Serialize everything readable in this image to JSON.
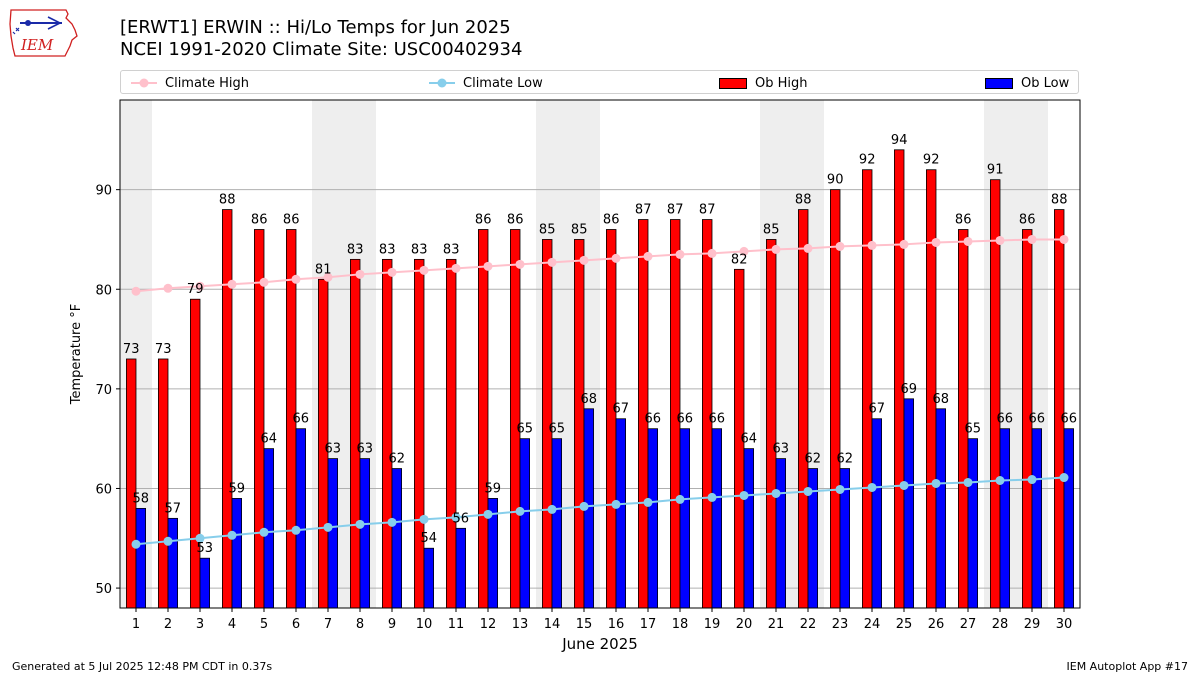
{
  "header": {
    "title_line1": "[ERWT1] ERWIN :: Hi/Lo Temps for Jun 2025",
    "title_line2": "NCEI 1991-2020 Climate Site: USC00402934",
    "logo_text": "IEM"
  },
  "colors": {
    "ob_high": "#ff0000",
    "ob_low": "#0000ff",
    "climate_high": "#ffc0cb",
    "climate_low": "#87ceeb",
    "weekend_shade": "#eeeeee"
  },
  "legend": {
    "climate_high": "Climate High",
    "climate_low": "Climate Low",
    "ob_high": "Ob High",
    "ob_low": "Ob Low"
  },
  "chart_data": {
    "type": "bar",
    "title": "[ERWT1] ERWIN :: Hi/Lo Temps for Jun 2025",
    "xlabel": "June 2025",
    "ylabel": "Temperature °F",
    "ylim": [
      48,
      99
    ],
    "yticks": [
      50,
      60,
      70,
      80,
      90
    ],
    "grid": "horizontal",
    "legend_position": "top",
    "categories": [
      "1",
      "2",
      "3",
      "4",
      "5",
      "6",
      "7",
      "8",
      "9",
      "10",
      "11",
      "12",
      "13",
      "14",
      "15",
      "16",
      "17",
      "18",
      "19",
      "20",
      "21",
      "22",
      "23",
      "24",
      "25",
      "26",
      "27",
      "28",
      "29",
      "30"
    ],
    "shaded_days": [
      1,
      7,
      8,
      14,
      15,
      21,
      22,
      28,
      29
    ],
    "series": [
      {
        "name": "Ob High",
        "kind": "bar",
        "values": [
          73,
          73,
          79,
          88,
          86,
          86,
          81,
          83,
          83,
          83,
          83,
          86,
          86,
          85,
          85,
          86,
          87,
          87,
          87,
          82,
          85,
          88,
          90,
          92,
          94,
          92,
          86,
          91,
          86,
          88
        ]
      },
      {
        "name": "Ob Low",
        "kind": "bar",
        "values": [
          58,
          57,
          53,
          59,
          64,
          66,
          63,
          63,
          62,
          54,
          56,
          59,
          65,
          65,
          68,
          67,
          66,
          66,
          66,
          64,
          63,
          62,
          62,
          67,
          69,
          68,
          65,
          66,
          66,
          66
        ]
      },
      {
        "name": "Climate High",
        "kind": "line",
        "values": [
          79.8,
          80.1,
          80.3,
          80.5,
          80.7,
          81.0,
          81.2,
          81.5,
          81.7,
          81.9,
          82.1,
          82.3,
          82.5,
          82.7,
          82.9,
          83.1,
          83.3,
          83.5,
          83.6,
          83.8,
          84.0,
          84.1,
          84.3,
          84.4,
          84.5,
          84.7,
          84.8,
          84.9,
          85.0,
          85.0
        ]
      },
      {
        "name": "Climate Low",
        "kind": "line",
        "values": [
          54.4,
          54.7,
          55.0,
          55.3,
          55.6,
          55.8,
          56.1,
          56.4,
          56.6,
          56.9,
          57.1,
          57.4,
          57.7,
          57.9,
          58.2,
          58.4,
          58.6,
          58.9,
          59.1,
          59.3,
          59.5,
          59.7,
          59.9,
          60.1,
          60.3,
          60.5,
          60.6,
          60.8,
          60.9,
          61.1
        ]
      }
    ]
  },
  "footer": {
    "left": "Generated at 5 Jul 2025 12:48 PM CDT in 0.37s",
    "right": "IEM Autoplot App #17"
  }
}
